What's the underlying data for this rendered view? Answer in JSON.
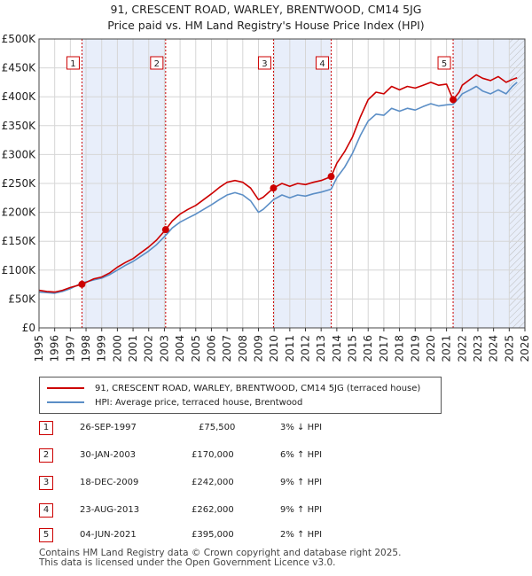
{
  "header": {
    "title_line1": "91, CRESCENT ROAD, WARLEY, BRENTWOOD, CM14 5JG",
    "title_line2": "Price paid vs. HM Land Registry's House Price Index (HPI)"
  },
  "chart_data": {
    "type": "line",
    "title": "91, CRESCENT ROAD, WARLEY, BRENTWOOD, CM14 5JG — Price paid vs. HM Land Registry's House Price Index (HPI)",
    "xlim": [
      1995,
      2026
    ],
    "ylim": [
      0,
      500000
    ],
    "grid": true,
    "x_ticks": [
      "1995",
      "1996",
      "1997",
      "1998",
      "1999",
      "2000",
      "2001",
      "2002",
      "2003",
      "2004",
      "2005",
      "2006",
      "2007",
      "2008",
      "2009",
      "2010",
      "2011",
      "2012",
      "2013",
      "2014",
      "2015",
      "2016",
      "2017",
      "2018",
      "2019",
      "2020",
      "2021",
      "2022",
      "2023",
      "2024",
      "2025",
      "2026"
    ],
    "y_ticks": [
      {
        "value": 0,
        "label": "£0"
      },
      {
        "value": 50000,
        "label": "£50K"
      },
      {
        "value": 100000,
        "label": "£100K"
      },
      {
        "value": 150000,
        "label": "£150K"
      },
      {
        "value": 200000,
        "label": "£200K"
      },
      {
        "value": 250000,
        "label": "£250K"
      },
      {
        "value": 300000,
        "label": "£300K"
      },
      {
        "value": 350000,
        "label": "£350K"
      },
      {
        "value": 400000,
        "label": "£400K"
      },
      {
        "value": 450000,
        "label": "£450K"
      },
      {
        "value": 500000,
        "label": "£500K"
      }
    ],
    "series": [
      {
        "name": "91, CRESCENT ROAD, WARLEY, BRENTWOOD, CM14 5JG (terraced house)",
        "color": "#cc0000",
        "x": [
          1995.0,
          1995.5,
          1996.0,
          1996.5,
          1997.0,
          1997.74,
          1998.5,
          1999.0,
          1999.5,
          2000.0,
          2000.5,
          2001.0,
          2001.5,
          2002.0,
          2002.5,
          2003.08,
          2003.5,
          2004.0,
          2004.5,
          2005.0,
          2005.5,
          2006.0,
          2006.5,
          2007.0,
          2007.5,
          2008.0,
          2008.5,
          2009.0,
          2009.3,
          2009.96,
          2010.5,
          2011.0,
          2011.5,
          2012.0,
          2012.5,
          2013.0,
          2013.64,
          2014.0,
          2014.5,
          2015.0,
          2015.5,
          2016.0,
          2016.5,
          2017.0,
          2017.5,
          2018.0,
          2018.5,
          2019.0,
          2019.5,
          2020.0,
          2020.5,
          2021.0,
          2021.42,
          2021.8,
          2022.0,
          2022.5,
          2022.9,
          2023.3,
          2023.8,
          2024.3,
          2024.8,
          2025.2,
          2025.5
        ],
        "values": [
          65000,
          63000,
          62000,
          65000,
          70000,
          75500,
          85000,
          88000,
          95000,
          105000,
          113000,
          120000,
          130000,
          140000,
          152000,
          170000,
          185000,
          197000,
          205000,
          212000,
          222000,
          232000,
          243000,
          252000,
          255000,
          252000,
          242000,
          222000,
          226000,
          242000,
          250000,
          245000,
          250000,
          248000,
          252000,
          255000,
          262000,
          285000,
          305000,
          330000,
          365000,
          395000,
          408000,
          405000,
          418000,
          412000,
          418000,
          415000,
          420000,
          425000,
          420000,
          422000,
          395000,
          408000,
          420000,
          430000,
          438000,
          432000,
          428000,
          435000,
          425000,
          430000,
          433000
        ]
      },
      {
        "name": "HPI: Average price, terraced house, Brentwood",
        "color": "#5b8ec6",
        "x": [
          1995.0,
          1995.5,
          1996.0,
          1996.5,
          1997.0,
          1997.74,
          1998.5,
          1999.0,
          1999.5,
          2000.0,
          2000.5,
          2001.0,
          2001.5,
          2002.0,
          2002.5,
          2003.08,
          2003.5,
          2004.0,
          2004.5,
          2005.0,
          2005.5,
          2006.0,
          2006.5,
          2007.0,
          2007.5,
          2008.0,
          2008.5,
          2009.0,
          2009.3,
          2009.96,
          2010.5,
          2011.0,
          2011.5,
          2012.0,
          2012.5,
          2013.0,
          2013.64,
          2014.0,
          2014.5,
          2015.0,
          2015.5,
          2016.0,
          2016.5,
          2017.0,
          2017.5,
          2018.0,
          2018.5,
          2019.0,
          2019.5,
          2020.0,
          2020.5,
          2021.0,
          2021.42,
          2021.8,
          2022.0,
          2022.5,
          2022.9,
          2023.3,
          2023.8,
          2024.3,
          2024.8,
          2025.2,
          2025.5
        ],
        "values": [
          62000,
          61000,
          60000,
          63000,
          68000,
          77800,
          83000,
          86000,
          92000,
          100000,
          108000,
          115000,
          124000,
          133000,
          144000,
          160000,
          173000,
          183000,
          190000,
          197000,
          205000,
          213000,
          222000,
          230000,
          234000,
          230000,
          220000,
          200000,
          205000,
          222000,
          230000,
          225000,
          230000,
          228000,
          232000,
          235000,
          240000,
          260000,
          278000,
          302000,
          333000,
          358000,
          370000,
          368000,
          380000,
          375000,
          380000,
          377000,
          383000,
          388000,
          384000,
          386000,
          387000,
          398000,
          405000,
          412000,
          418000,
          410000,
          405000,
          412000,
          405000,
          418000,
          425000
        ]
      }
    ],
    "sales": [
      {
        "num": "1",
        "x": 1997.74,
        "price": 75500
      },
      {
        "num": "2",
        "x": 2003.08,
        "price": 170000
      },
      {
        "num": "3",
        "x": 2009.96,
        "price": 242000
      },
      {
        "num": "4",
        "x": 2013.64,
        "price": 262000
      },
      {
        "num": "5",
        "x": 2021.42,
        "price": 395000
      }
    ],
    "shaded_periods": [
      [
        1997.74,
        2003.08
      ],
      [
        2009.96,
        2013.64
      ],
      [
        2021.42,
        2026
      ]
    ],
    "hatched_period": [
      2025.0,
      2026.0
    ],
    "legend_position": "below"
  },
  "legend": {
    "property_label": "91, CRESCENT ROAD, WARLEY, BRENTWOOD, CM14 5JG (terraced house)",
    "hpi_label": "HPI: Average price, terraced house, Brentwood",
    "property_color": "#cc0000",
    "hpi_color": "#5b8ec6"
  },
  "sales_table": [
    {
      "num": "1",
      "date": "26-SEP-1997",
      "price": "£75,500",
      "hpi": "3% ↓ HPI"
    },
    {
      "num": "2",
      "date": "30-JAN-2003",
      "price": "£170,000",
      "hpi": "6% ↑ HPI"
    },
    {
      "num": "3",
      "date": "18-DEC-2009",
      "price": "£242,000",
      "hpi": "9% ↑ HPI"
    },
    {
      "num": "4",
      "date": "23-AUG-2013",
      "price": "£262,000",
      "hpi": "9% ↑ HPI"
    },
    {
      "num": "5",
      "date": "04-JUN-2021",
      "price": "£395,000",
      "hpi": "2% ↑ HPI"
    }
  ],
  "footer": {
    "line1": "Contains HM Land Registry data © Crown copyright and database right 2025.",
    "line2": "This data is licensed under the Open Government Licence v3.0."
  }
}
